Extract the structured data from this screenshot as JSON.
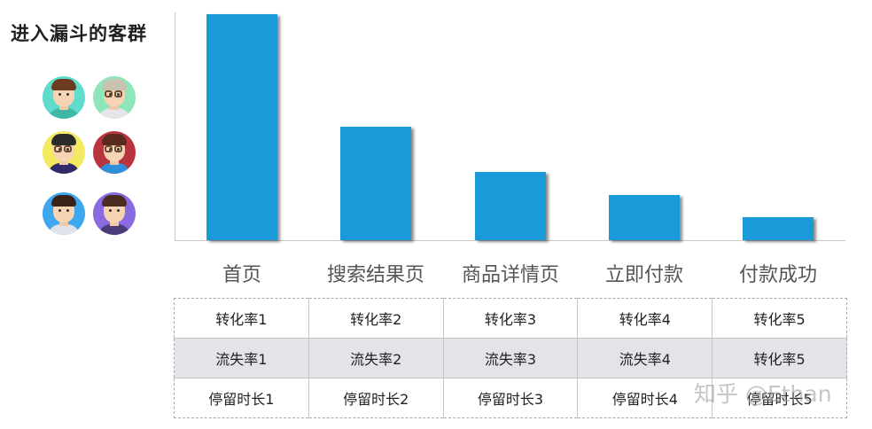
{
  "sidebar": {
    "title": "进入漏斗的客群",
    "avatars": [
      {
        "bg": "#5fdccb",
        "hair": "#6b3b22",
        "shirt": "#3fb8a6",
        "glasses": false
      },
      {
        "bg": "#8fe6b8",
        "hair": "#c8c2b0",
        "shirt": "#e6e6ea",
        "glasses": true
      },
      {
        "bg": "#f3ea61",
        "hair": "#2b2b2b",
        "shirt": "#2f2a6a",
        "glasses": true
      },
      {
        "bg": "#b8343f",
        "hair": "#5a2a20",
        "shirt": "#2f8fd8",
        "glasses": true
      },
      {
        "bg": "#3fa7f0",
        "hair": "#3a2418",
        "shirt": "#dde3e8",
        "glasses": false
      },
      {
        "bg": "#8a6ae0",
        "hair": "#4a2c20",
        "shirt": "#4a3b7a",
        "glasses": false
      }
    ]
  },
  "chart_data": {
    "type": "bar",
    "title": "",
    "xlabel": "",
    "ylabel": "",
    "categories": [
      "首页",
      "搜索结果页",
      "商品详情页",
      "立即付款",
      "付款成功"
    ],
    "values": [
      100,
      50,
      30,
      20,
      10
    ],
    "ylim": [
      0,
      100
    ],
    "grid": false,
    "legend": "none",
    "bar_color": "#1b9ad9",
    "note": "Relative funnel volumes estimated from bar heights (no axis ticks shown)"
  },
  "table": {
    "rows": [
      [
        "转化率1",
        "转化率2",
        "转化率3",
        "转化率4",
        "转化率5"
      ],
      [
        "流失率1",
        "流失率2",
        "流失率3",
        "流失率4",
        "转化率5"
      ],
      [
        "停留时长1",
        "停留时长2",
        "停留时长3",
        "停留时长4",
        "停留时长5"
      ]
    ]
  },
  "watermark": "知乎 @Ethan"
}
